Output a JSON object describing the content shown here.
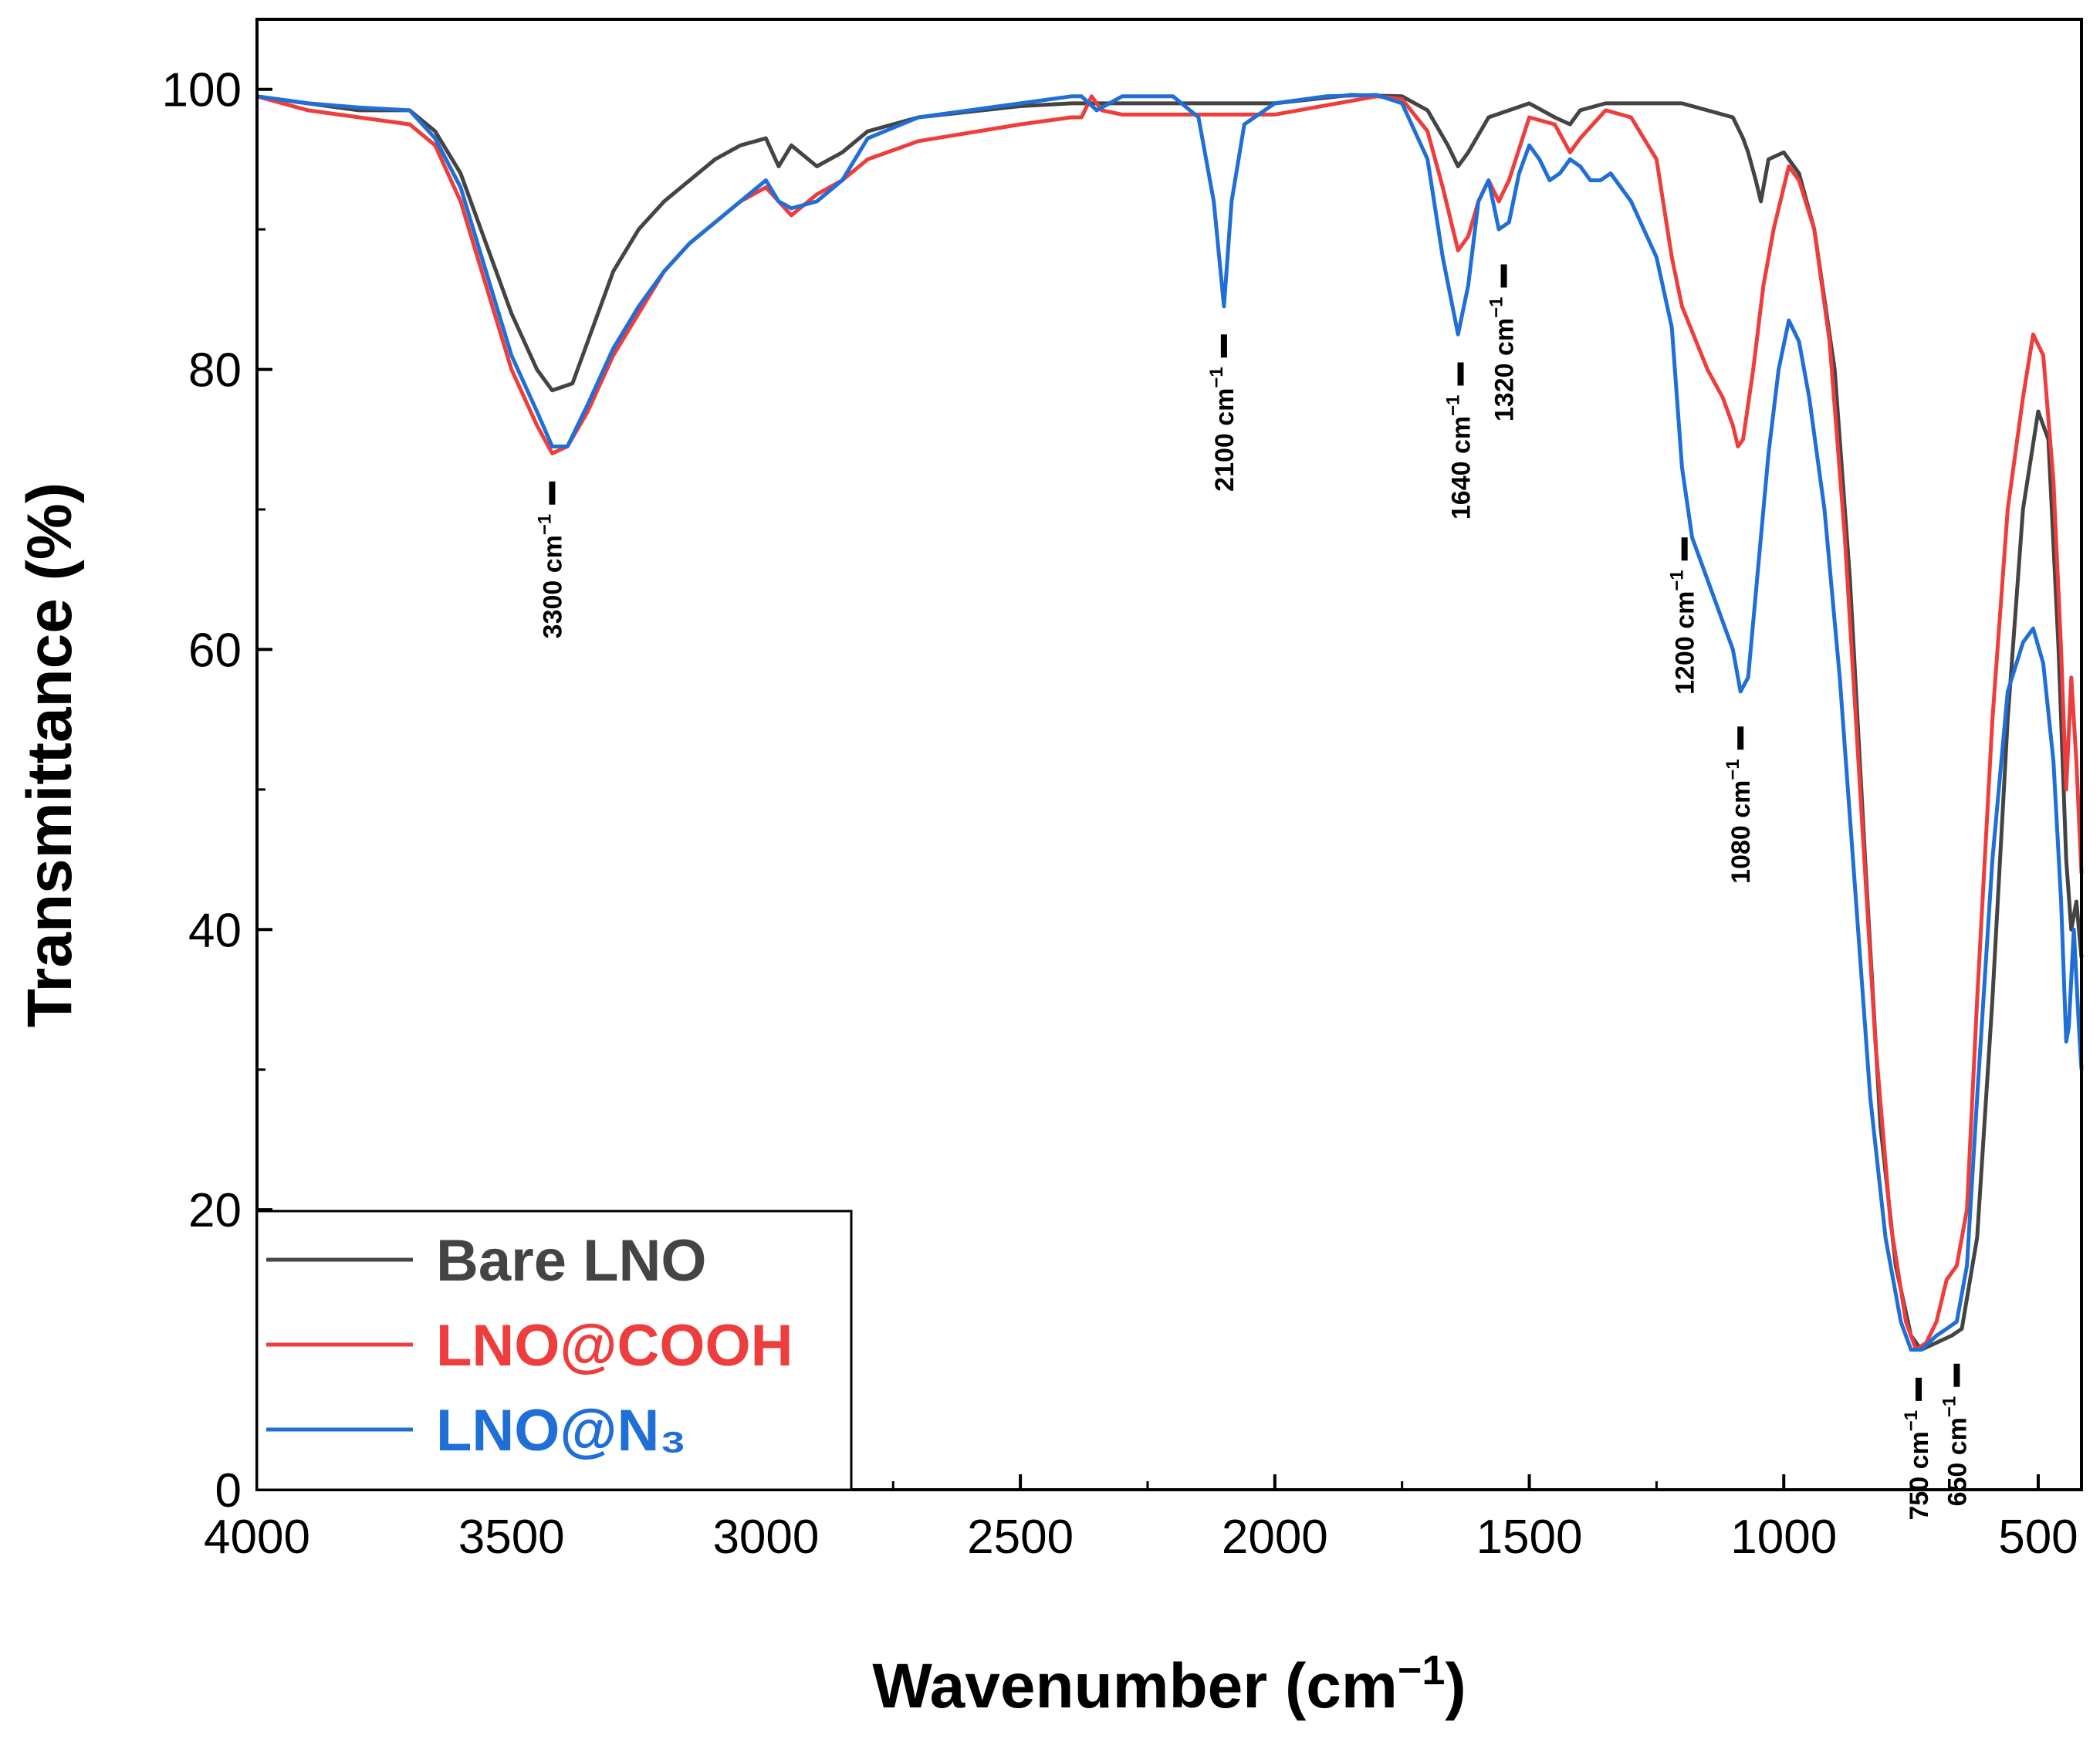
{
  "chart_data": {
    "type": "line",
    "title": "",
    "xlabel": "Wavenumber (cm",
    "xlabel_sup": "−1",
    "xlabel_end": ")",
    "ylabel": "Transmittance (%)",
    "xlim": [
      4000,
      415
    ],
    "ylim": [
      0,
      105
    ],
    "x_ticks": [
      4000,
      3500,
      3000,
      2500,
      2000,
      1500,
      1000,
      500
    ],
    "y_ticks": [
      0,
      20,
      40,
      60,
      80,
      100
    ],
    "grid": false,
    "legend": "bottom-left",
    "series": [
      {
        "name": "Bare LNO",
        "color": "#444444",
        "points": [
          [
            4000,
            99.5
          ],
          [
            3900,
            99
          ],
          [
            3800,
            98.5
          ],
          [
            3700,
            98.5
          ],
          [
            3650,
            97
          ],
          [
            3600,
            94
          ],
          [
            3550,
            89
          ],
          [
            3500,
            84
          ],
          [
            3450,
            80
          ],
          [
            3420,
            78.5
          ],
          [
            3380,
            79
          ],
          [
            3350,
            82
          ],
          [
            3300,
            87
          ],
          [
            3250,
            90
          ],
          [
            3200,
            92
          ],
          [
            3100,
            95
          ],
          [
            3050,
            96
          ],
          [
            3000,
            96.5
          ],
          [
            2975,
            94.5
          ],
          [
            2950,
            96
          ],
          [
            2900,
            94.5
          ],
          [
            2850,
            95.5
          ],
          [
            2800,
            97
          ],
          [
            2700,
            98
          ],
          [
            2500,
            98.8
          ],
          [
            2400,
            99
          ],
          [
            2000,
            99
          ],
          [
            1850,
            99.6
          ],
          [
            1750,
            99.5
          ],
          [
            1700,
            98.5
          ],
          [
            1660,
            96
          ],
          [
            1640,
            94.5
          ],
          [
            1620,
            95.5
          ],
          [
            1580,
            98
          ],
          [
            1500,
            99
          ],
          [
            1450,
            98
          ],
          [
            1420,
            97.5
          ],
          [
            1400,
            98.5
          ],
          [
            1350,
            99
          ],
          [
            1200,
            99
          ],
          [
            1100,
            98
          ],
          [
            1080,
            96.5
          ],
          [
            1070,
            95.5
          ],
          [
            1055,
            93.5
          ],
          [
            1045,
            92
          ],
          [
            1030,
            95
          ],
          [
            1000,
            95.5
          ],
          [
            970,
            94
          ],
          [
            940,
            90
          ],
          [
            900,
            80
          ],
          [
            870,
            65
          ],
          [
            840,
            45
          ],
          [
            810,
            26
          ],
          [
            780,
            16
          ],
          [
            750,
            11
          ],
          [
            730,
            10
          ],
          [
            700,
            10.5
          ],
          [
            670,
            11
          ],
          [
            650,
            11.5
          ],
          [
            620,
            18
          ],
          [
            590,
            35
          ],
          [
            560,
            55
          ],
          [
            530,
            70
          ],
          [
            500,
            77
          ],
          [
            480,
            75
          ],
          [
            460,
            60
          ],
          [
            445,
            45
          ],
          [
            435,
            40
          ],
          [
            425,
            42
          ],
          [
            415,
            38
          ]
        ]
      },
      {
        "name": "LNO@COOH",
        "color": "#ee3d3d",
        "points": [
          [
            4000,
            99.5
          ],
          [
            3900,
            98.5
          ],
          [
            3800,
            98
          ],
          [
            3700,
            97.5
          ],
          [
            3650,
            96
          ],
          [
            3600,
            92
          ],
          [
            3550,
            86
          ],
          [
            3500,
            80
          ],
          [
            3450,
            76
          ],
          [
            3420,
            74
          ],
          [
            3390,
            74.5
          ],
          [
            3350,
            77
          ],
          [
            3300,
            81
          ],
          [
            3250,
            84
          ],
          [
            3200,
            87
          ],
          [
            3150,
            89
          ],
          [
            3100,
            90.5
          ],
          [
            3050,
            92
          ],
          [
            3000,
            93
          ],
          [
            2975,
            92
          ],
          [
            2950,
            91
          ],
          [
            2900,
            92.5
          ],
          [
            2850,
            93.5
          ],
          [
            2800,
            95
          ],
          [
            2700,
            96.3
          ],
          [
            2500,
            97.5
          ],
          [
            2400,
            98
          ],
          [
            2380,
            98
          ],
          [
            2360,
            99.5
          ],
          [
            2340,
            98.5
          ],
          [
            2300,
            98.2
          ],
          [
            2000,
            98.2
          ],
          [
            1800,
            99.5
          ],
          [
            1750,
            99.3
          ],
          [
            1700,
            97
          ],
          [
            1670,
            93
          ],
          [
            1640,
            88.5
          ],
          [
            1620,
            89.5
          ],
          [
            1600,
            92
          ],
          [
            1580,
            93.5
          ],
          [
            1560,
            92
          ],
          [
            1540,
            93.5
          ],
          [
            1500,
            98
          ],
          [
            1450,
            97.5
          ],
          [
            1420,
            95.5
          ],
          [
            1400,
            96.5
          ],
          [
            1350,
            98.5
          ],
          [
            1300,
            98
          ],
          [
            1250,
            95
          ],
          [
            1220,
            88
          ],
          [
            1200,
            84.5
          ],
          [
            1150,
            80
          ],
          [
            1120,
            78
          ],
          [
            1100,
            76
          ],
          [
            1090,
            74.5
          ],
          [
            1080,
            75
          ],
          [
            1060,
            80
          ],
          [
            1040,
            86
          ],
          [
            1020,
            90
          ],
          [
            1000,
            93
          ],
          [
            990,
            94.5
          ],
          [
            970,
            93.5
          ],
          [
            940,
            90
          ],
          [
            910,
            82
          ],
          [
            880,
            68
          ],
          [
            850,
            50
          ],
          [
            820,
            32
          ],
          [
            790,
            19
          ],
          [
            760,
            12
          ],
          [
            740,
            10
          ],
          [
            720,
            10.5
          ],
          [
            700,
            12
          ],
          [
            680,
            15
          ],
          [
            660,
            16
          ],
          [
            640,
            20
          ],
          [
            620,
            35
          ],
          [
            590,
            55
          ],
          [
            560,
            70
          ],
          [
            530,
            78
          ],
          [
            510,
            82.5
          ],
          [
            490,
            81
          ],
          [
            470,
            72
          ],
          [
            455,
            60
          ],
          [
            445,
            50
          ],
          [
            435,
            58
          ],
          [
            425,
            52
          ],
          [
            415,
            44
          ]
        ]
      },
      {
        "name": "LNO@N₃",
        "color": "#1f6fd6",
        "points": [
          [
            4000,
            99.5
          ],
          [
            3900,
            99
          ],
          [
            3800,
            98.7
          ],
          [
            3700,
            98.5
          ],
          [
            3650,
            96.5
          ],
          [
            3600,
            93
          ],
          [
            3550,
            87
          ],
          [
            3500,
            81
          ],
          [
            3450,
            77
          ],
          [
            3420,
            74.5
          ],
          [
            3390,
            74.5
          ],
          [
            3350,
            77.5
          ],
          [
            3300,
            81.5
          ],
          [
            3250,
            84.5
          ],
          [
            3200,
            87
          ],
          [
            3150,
            89
          ],
          [
            3100,
            90.5
          ],
          [
            3050,
            92
          ],
          [
            3000,
            93.5
          ],
          [
            2975,
            92
          ],
          [
            2950,
            91.5
          ],
          [
            2900,
            92
          ],
          [
            2850,
            93.5
          ],
          [
            2800,
            96.5
          ],
          [
            2700,
            98
          ],
          [
            2500,
            99
          ],
          [
            2400,
            99.5
          ],
          [
            2380,
            99.5
          ],
          [
            2350,
            98.5
          ],
          [
            2300,
            99.5
          ],
          [
            2200,
            99.5
          ],
          [
            2150,
            98
          ],
          [
            2120,
            92
          ],
          [
            2100,
            84.5
          ],
          [
            2085,
            92
          ],
          [
            2060,
            97.5
          ],
          [
            2000,
            99
          ],
          [
            1900,
            99.5
          ],
          [
            1800,
            99.6
          ],
          [
            1750,
            99
          ],
          [
            1700,
            95
          ],
          [
            1670,
            88
          ],
          [
            1640,
            82.5
          ],
          [
            1620,
            86
          ],
          [
            1600,
            92
          ],
          [
            1580,
            93.5
          ],
          [
            1560,
            90
          ],
          [
            1540,
            90.5
          ],
          [
            1520,
            94
          ],
          [
            1500,
            96
          ],
          [
            1480,
            95
          ],
          [
            1460,
            93.5
          ],
          [
            1440,
            94
          ],
          [
            1420,
            95
          ],
          [
            1400,
            94.5
          ],
          [
            1380,
            93.5
          ],
          [
            1360,
            93.5
          ],
          [
            1340,
            94
          ],
          [
            1300,
            92
          ],
          [
            1250,
            88
          ],
          [
            1220,
            83
          ],
          [
            1200,
            73
          ],
          [
            1180,
            68
          ],
          [
            1160,
            66
          ],
          [
            1140,
            64
          ],
          [
            1120,
            62
          ],
          [
            1100,
            60
          ],
          [
            1085,
            57
          ],
          [
            1070,
            58
          ],
          [
            1050,
            66
          ],
          [
            1030,
            74
          ],
          [
            1010,
            80
          ],
          [
            990,
            83.5
          ],
          [
            970,
            82
          ],
          [
            950,
            78
          ],
          [
            920,
            70
          ],
          [
            890,
            58
          ],
          [
            860,
            43
          ],
          [
            830,
            28
          ],
          [
            800,
            18
          ],
          [
            770,
            12
          ],
          [
            750,
            10
          ],
          [
            730,
            10
          ],
          [
            700,
            11
          ],
          [
            680,
            11.5
          ],
          [
            660,
            12
          ],
          [
            640,
            16
          ],
          [
            620,
            28
          ],
          [
            590,
            45
          ],
          [
            560,
            57
          ],
          [
            530,
            60.5
          ],
          [
            510,
            61.5
          ],
          [
            490,
            59
          ],
          [
            470,
            52
          ],
          [
            455,
            42
          ],
          [
            445,
            32
          ],
          [
            440,
            33
          ],
          [
            430,
            40
          ],
          [
            420,
            33
          ],
          [
            415,
            30
          ]
        ]
      }
    ],
    "annotations": [
      {
        "label": "3300 cm",
        "sup": "−1",
        "x": 3420,
        "y": 72
      },
      {
        "label": "2100 cm",
        "sup": "−1",
        "x": 2100,
        "y": 82.5
      },
      {
        "label": "1640 cm",
        "sup": "−1",
        "x": 1635,
        "y": 80.5
      },
      {
        "label": "1320 cm",
        "sup": "−1",
        "x": 1550,
        "y": 87.5
      },
      {
        "label": "1200 cm",
        "sup": "−1",
        "x": 1195,
        "y": 68
      },
      {
        "label": "1080 cm",
        "sup": "−1",
        "x": 1085,
        "y": 54.5
      },
      {
        "label": "750 cm",
        "sup": "−1",
        "x": 735,
        "y": 8
      },
      {
        "label": "650 cm",
        "sup": "−1",
        "x": 660,
        "y": 9
      }
    ]
  }
}
